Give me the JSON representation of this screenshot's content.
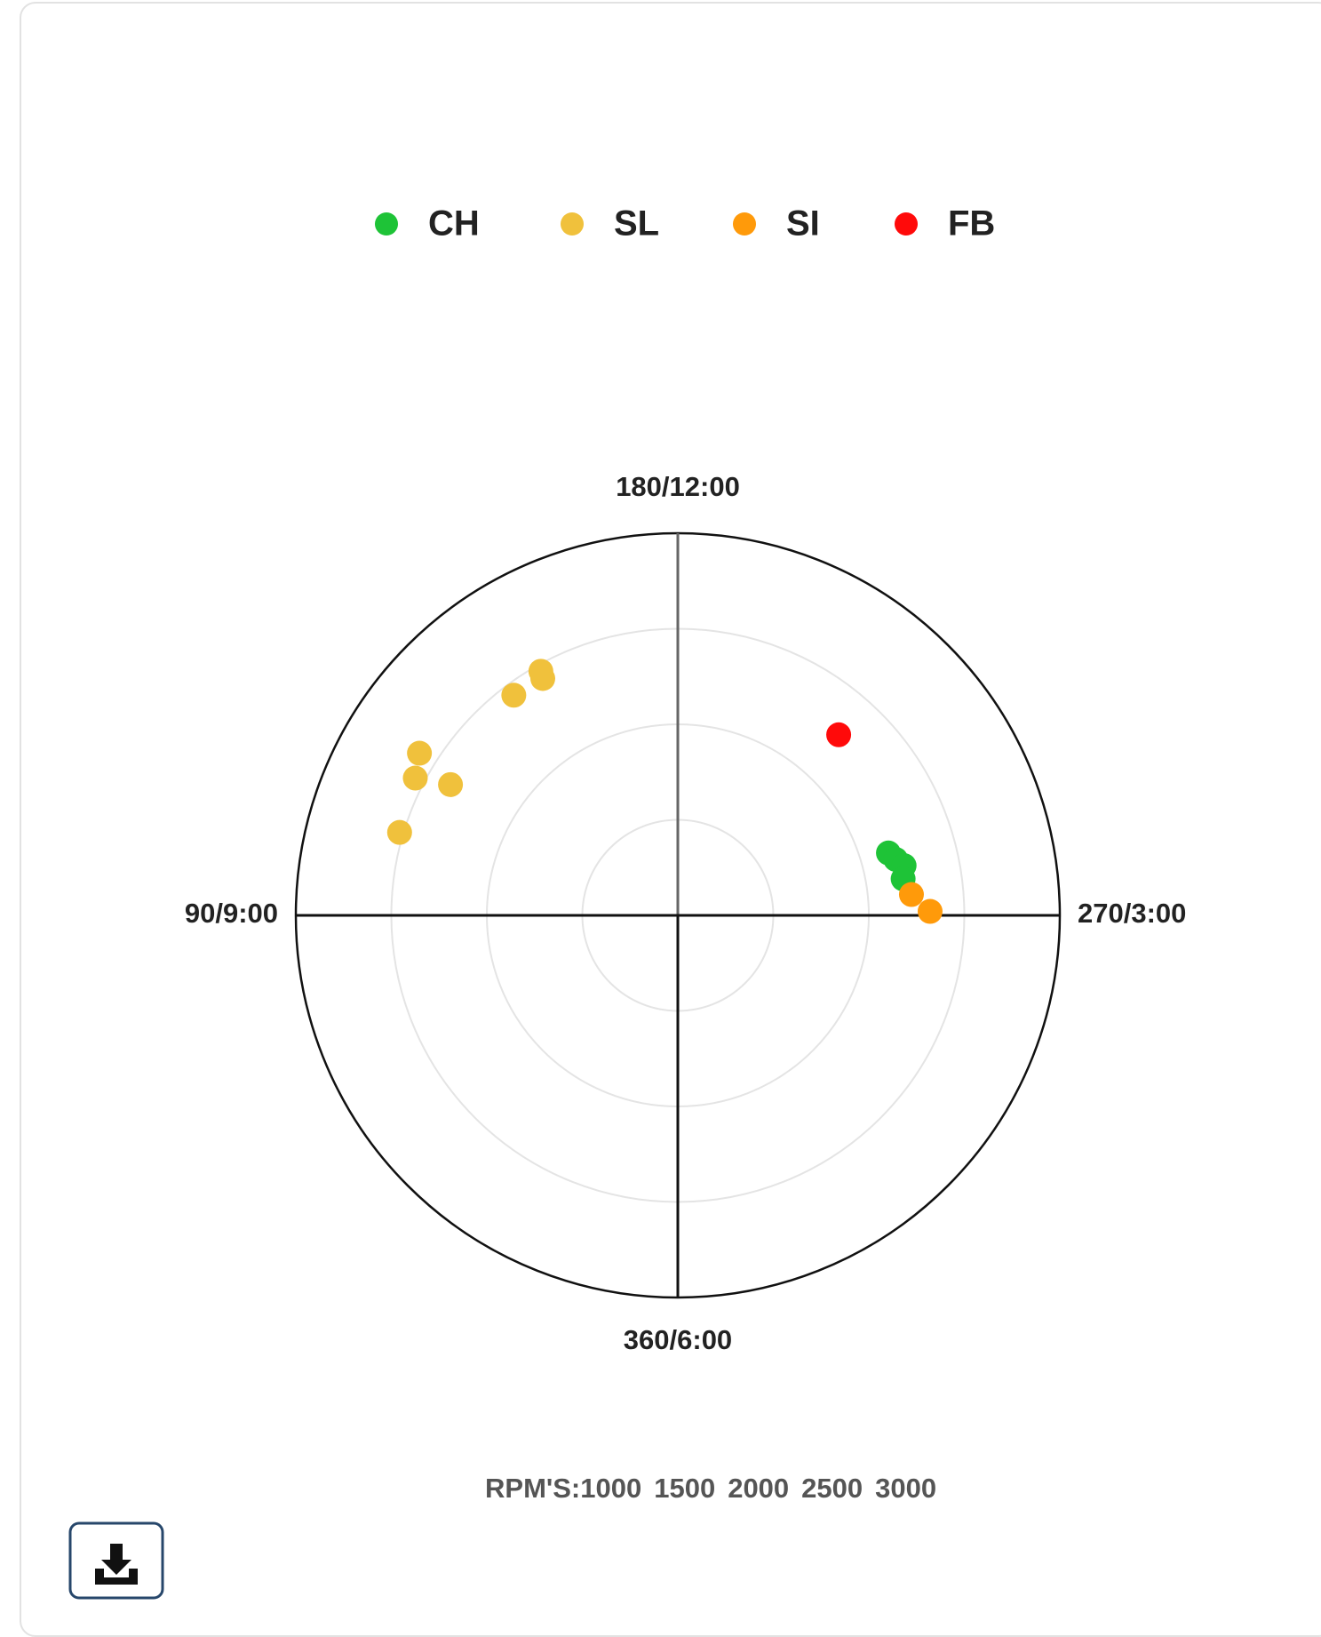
{
  "chart_data": {
    "type": "polar-scatter",
    "series": [
      {
        "name": "CH",
        "color": "#1ec337",
        "angles": [
          253.5,
          255.6,
          257.6,
          260.8
        ],
        "values": [
          2150,
          2178,
          2213,
          2195
        ]
      },
      {
        "name": "SL",
        "color": "#f0c13c",
        "angles": [
          150.7,
          150.3,
          143.3,
          122.1,
          117.6,
          119.9,
          106.6
        ],
        "values": [
          2465,
          2427,
          2437,
          2597,
          2551,
          2373,
          2520
        ]
      },
      {
        "name": "SI",
        "color": "#ff9a0a",
        "angles": [
          264.9,
          269.1
        ],
        "values": [
          2228,
          2321
        ]
      },
      {
        "name": "FB",
        "color": "#ff0a0a",
        "angles": [
          221.7
        ],
        "values": [
          2266
        ]
      }
    ],
    "angle_ticks": [
      {
        "value": 180,
        "label": "180/12:00"
      },
      {
        "value": 90,
        "label": "90/9:00"
      },
      {
        "value": 270,
        "label": "270/3:00"
      },
      {
        "value": 360,
        "label": "360/6:00"
      }
    ],
    "rlim": [
      1000,
      3000
    ],
    "rlabel": "RPM'S:",
    "rticks": [
      1000,
      1500,
      2000,
      2500,
      3000
    ]
  }
}
